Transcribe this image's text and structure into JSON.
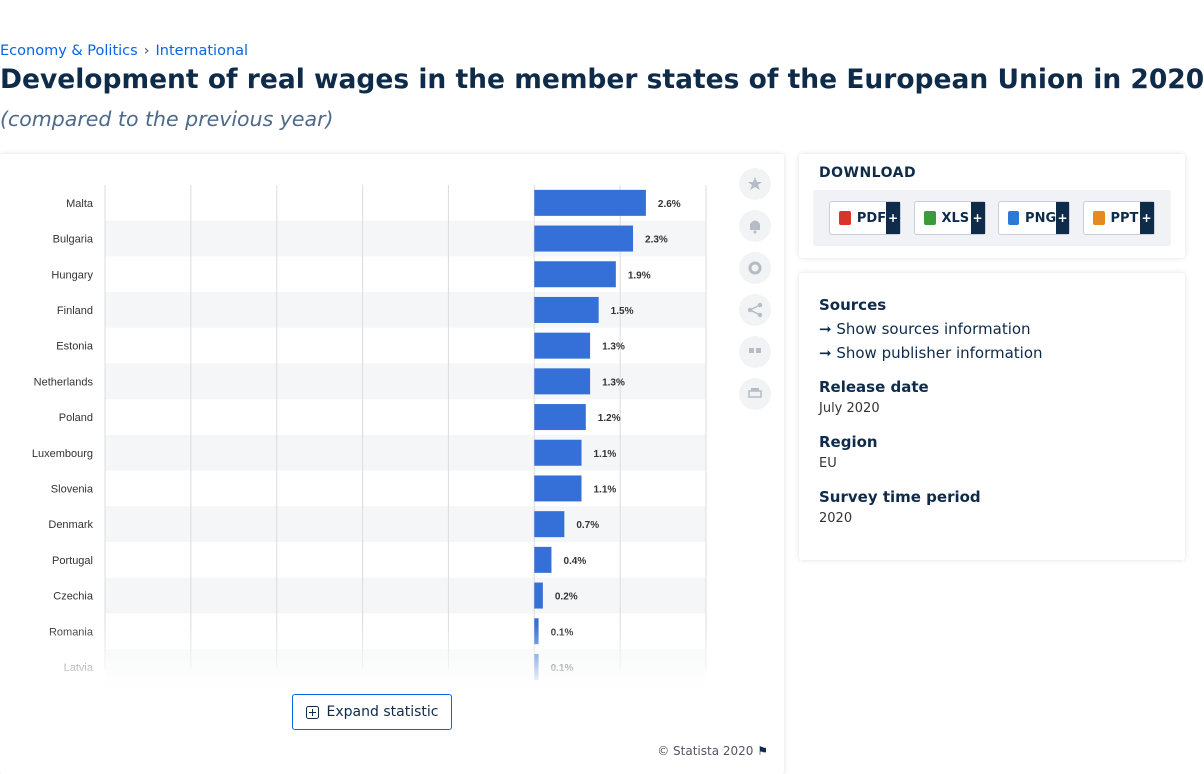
{
  "breadcrumb": [
    "Economy & Politics",
    "International"
  ],
  "breadcrumb_separator": "›",
  "title": "Development of real wages in the member states of the European Union in 2020",
  "subtitle": "(compared to the previous year)",
  "chart_data": {
    "type": "hbar",
    "categories": [
      "Malta",
      "Bulgaria",
      "Hungary",
      "Finland",
      "Estonia",
      "Netherlands",
      "Poland",
      "Luxembourg",
      "Slovenia",
      "Denmark",
      "Portugal",
      "Czechia",
      "Romania",
      "Latvia"
    ],
    "values": [
      2.6,
      2.3,
      1.9,
      1.5,
      1.3,
      1.3,
      1.2,
      1.1,
      1.1,
      0.7,
      0.4,
      0.2,
      0.1,
      0.1
    ],
    "value_labels": [
      "2.6%",
      "2.3%",
      "1.9%",
      "1.5%",
      "1.3%",
      "1.3%",
      "1.2%",
      "1.1%",
      "1.1%",
      "0.7%",
      "0.4%",
      "0.2%",
      "0.1%",
      "0.1%"
    ],
    "color": "#3570d8",
    "xlim": [
      -10,
      4
    ],
    "grid_lines": [
      -10,
      -8,
      -6,
      -4,
      -2,
      0,
      2,
      4
    ],
    "grid": true,
    "striped_rows": true
  },
  "expand_button": "Expand statistic",
  "copyright": "© Statista 2020",
  "download": {
    "title": "DOWNLOAD",
    "buttons": [
      {
        "label": "PDF",
        "plus": "+",
        "color": "#d9332c"
      },
      {
        "label": "XLS",
        "plus": "+",
        "color": "#3a9b3a"
      },
      {
        "label": "PNG",
        "plus": "+",
        "color": "#2b7bd6"
      },
      {
        "label": "PPT",
        "plus": "+",
        "color": "#e58a1f"
      }
    ]
  },
  "info": {
    "sources_heading": "Sources",
    "links": [
      "Show sources information",
      "Show publisher information"
    ],
    "fields": [
      {
        "label": "Release date",
        "value": "July 2020"
      },
      {
        "label": "Region",
        "value": "EU"
      },
      {
        "label": "Survey time period",
        "value": "2020"
      }
    ]
  }
}
